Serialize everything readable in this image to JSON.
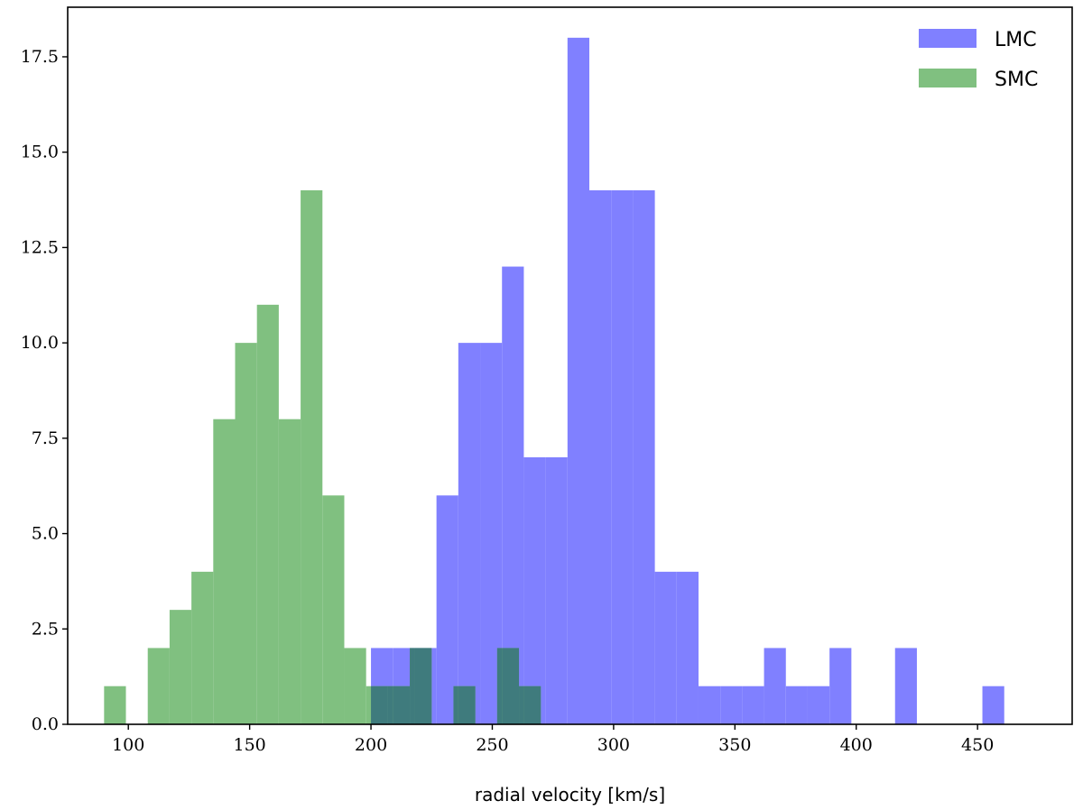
{
  "chart_data": {
    "type": "bar",
    "subtype": "overlapping-histogram",
    "title": "",
    "xlabel": "radial velocity [km/s]",
    "ylabel": "",
    "xlim": [
      75,
      489
    ],
    "ylim": [
      0,
      18.8
    ],
    "xticks": [
      "100",
      "150",
      "200",
      "250",
      "300",
      "350",
      "400",
      "450"
    ],
    "yticks": [
      "0.0",
      "2.5",
      "5.0",
      "7.5",
      "10.0",
      "12.5",
      "15.0",
      "17.5"
    ],
    "grid": false,
    "legend": "top-right",
    "overlap_color": "#3f7b7d",
    "series": [
      {
        "name": "LMC",
        "color": "#8080ff",
        "bins": [
          {
            "x0": 200,
            "x1": 209,
            "count": 2
          },
          {
            "x0": 209,
            "x1": 218,
            "count": 2
          },
          {
            "x0": 218,
            "x1": 227,
            "count": 2
          },
          {
            "x0": 227,
            "x1": 236,
            "count": 6
          },
          {
            "x0": 236,
            "x1": 245,
            "count": 10
          },
          {
            "x0": 245,
            "x1": 254,
            "count": 10
          },
          {
            "x0": 254,
            "x1": 263,
            "count": 12
          },
          {
            "x0": 263,
            "x1": 272,
            "count": 7
          },
          {
            "x0": 272,
            "x1": 281,
            "count": 7
          },
          {
            "x0": 281,
            "x1": 290,
            "count": 18
          },
          {
            "x0": 290,
            "x1": 299,
            "count": 14
          },
          {
            "x0": 299,
            "x1": 308,
            "count": 14
          },
          {
            "x0": 308,
            "x1": 317,
            "count": 14
          },
          {
            "x0": 317,
            "x1": 326,
            "count": 4
          },
          {
            "x0": 326,
            "x1": 335,
            "count": 4
          },
          {
            "x0": 335,
            "x1": 344,
            "count": 1
          },
          {
            "x0": 344,
            "x1": 353,
            "count": 1
          },
          {
            "x0": 353,
            "x1": 362,
            "count": 1
          },
          {
            "x0": 362,
            "x1": 371,
            "count": 2
          },
          {
            "x0": 371,
            "x1": 380,
            "count": 1
          },
          {
            "x0": 380,
            "x1": 389,
            "count": 1
          },
          {
            "x0": 389,
            "x1": 398,
            "count": 2
          },
          {
            "x0": 416,
            "x1": 425,
            "count": 2
          },
          {
            "x0": 452,
            "x1": 461,
            "count": 1
          }
        ]
      },
      {
        "name": "SMC",
        "color": "#80c080",
        "bins": [
          {
            "x0": 90,
            "x1": 99,
            "count": 1
          },
          {
            "x0": 108,
            "x1": 117,
            "count": 2
          },
          {
            "x0": 117,
            "x1": 126,
            "count": 3
          },
          {
            "x0": 126,
            "x1": 135,
            "count": 4
          },
          {
            "x0": 135,
            "x1": 144,
            "count": 8
          },
          {
            "x0": 144,
            "x1": 153,
            "count": 10
          },
          {
            "x0": 153,
            "x1": 162,
            "count": 11
          },
          {
            "x0": 162,
            "x1": 171,
            "count": 8
          },
          {
            "x0": 171,
            "x1": 180,
            "count": 14
          },
          {
            "x0": 180,
            "x1": 189,
            "count": 6
          },
          {
            "x0": 189,
            "x1": 198,
            "count": 2
          },
          {
            "x0": 198,
            "x1": 207,
            "count": 1
          },
          {
            "x0": 207,
            "x1": 216,
            "count": 1
          },
          {
            "x0": 216,
            "x1": 225,
            "count": 2
          },
          {
            "x0": 225,
            "x1": 234,
            "count": 0
          },
          {
            "x0": 234,
            "x1": 243,
            "count": 1
          },
          {
            "x0": 243,
            "x1": 252,
            "count": 0
          },
          {
            "x0": 252,
            "x1": 261,
            "count": 2
          },
          {
            "x0": 261,
            "x1": 270,
            "count": 1
          }
        ]
      }
    ]
  }
}
